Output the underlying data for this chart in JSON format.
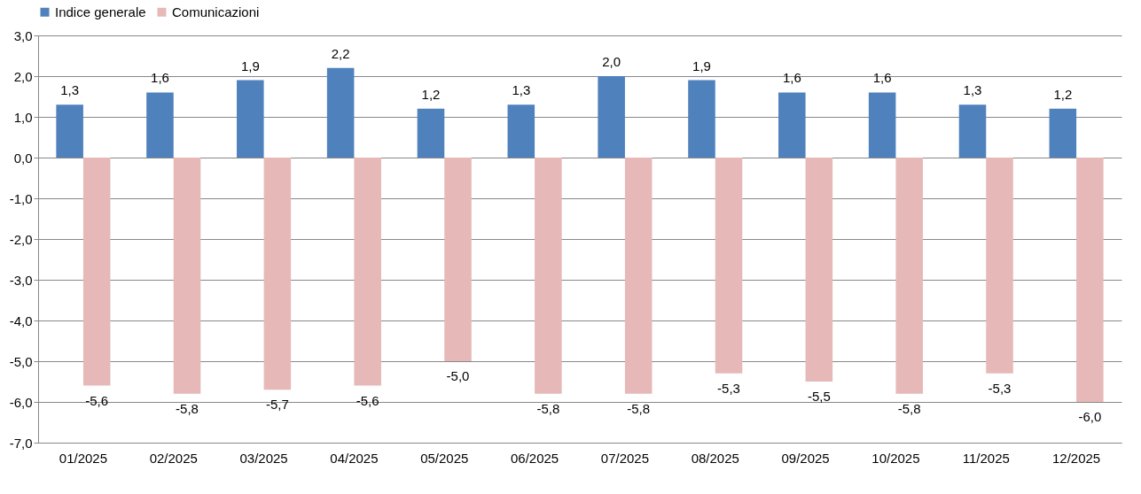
{
  "chart_data": {
    "type": "bar",
    "categories": [
      "01/2025",
      "02/2025",
      "03/2025",
      "04/2025",
      "05/2025",
      "06/2025",
      "07/2025",
      "08/2025",
      "09/2025",
      "10/2025",
      "11/2025",
      "12/2025"
    ],
    "series": [
      {
        "name": "Indice generale",
        "color": "#4f81bd",
        "values": [
          1.3,
          1.6,
          1.9,
          2.2,
          1.2,
          1.3,
          2.0,
          1.9,
          1.6,
          1.6,
          1.3,
          1.2
        ],
        "value_labels": [
          "1,3",
          "1,6",
          "1,9",
          "2,2",
          "1,2",
          "1,3",
          "2,0",
          "1,9",
          "1,6",
          "1,6",
          "1,3",
          "1,2"
        ]
      },
      {
        "name": "Comunicazioni",
        "color": "#e6b9b8",
        "values": [
          -5.6,
          -5.8,
          -5.7,
          -5.6,
          -5.0,
          -5.8,
          -5.8,
          -5.3,
          -5.5,
          -5.8,
          -5.3,
          -6.0
        ],
        "value_labels": [
          "-5,6",
          "-5,8",
          "-5,7",
          "-5,6",
          "-5,0",
          "-5,8",
          "-5,8",
          "-5,3",
          "-5,5",
          "-5,8",
          "-5,3",
          "-6,0"
        ]
      }
    ],
    "ylim": [
      -7,
      3
    ],
    "yticks": [
      {
        "value": -7,
        "label": "-7,0"
      },
      {
        "value": -6,
        "label": "-6,0"
      },
      {
        "value": -5,
        "label": "-5,0"
      },
      {
        "value": -4,
        "label": "-4,0"
      },
      {
        "value": -3,
        "label": "-3,0"
      },
      {
        "value": -2,
        "label": "-2,0"
      },
      {
        "value": -1,
        "label": "-1,0"
      },
      {
        "value": 0,
        "label": "0,0"
      },
      {
        "value": 1,
        "label": "1,0"
      },
      {
        "value": 2,
        "label": "2,0"
      },
      {
        "value": 3,
        "label": "3,0"
      }
    ],
    "grid": "y",
    "legend": "top"
  }
}
